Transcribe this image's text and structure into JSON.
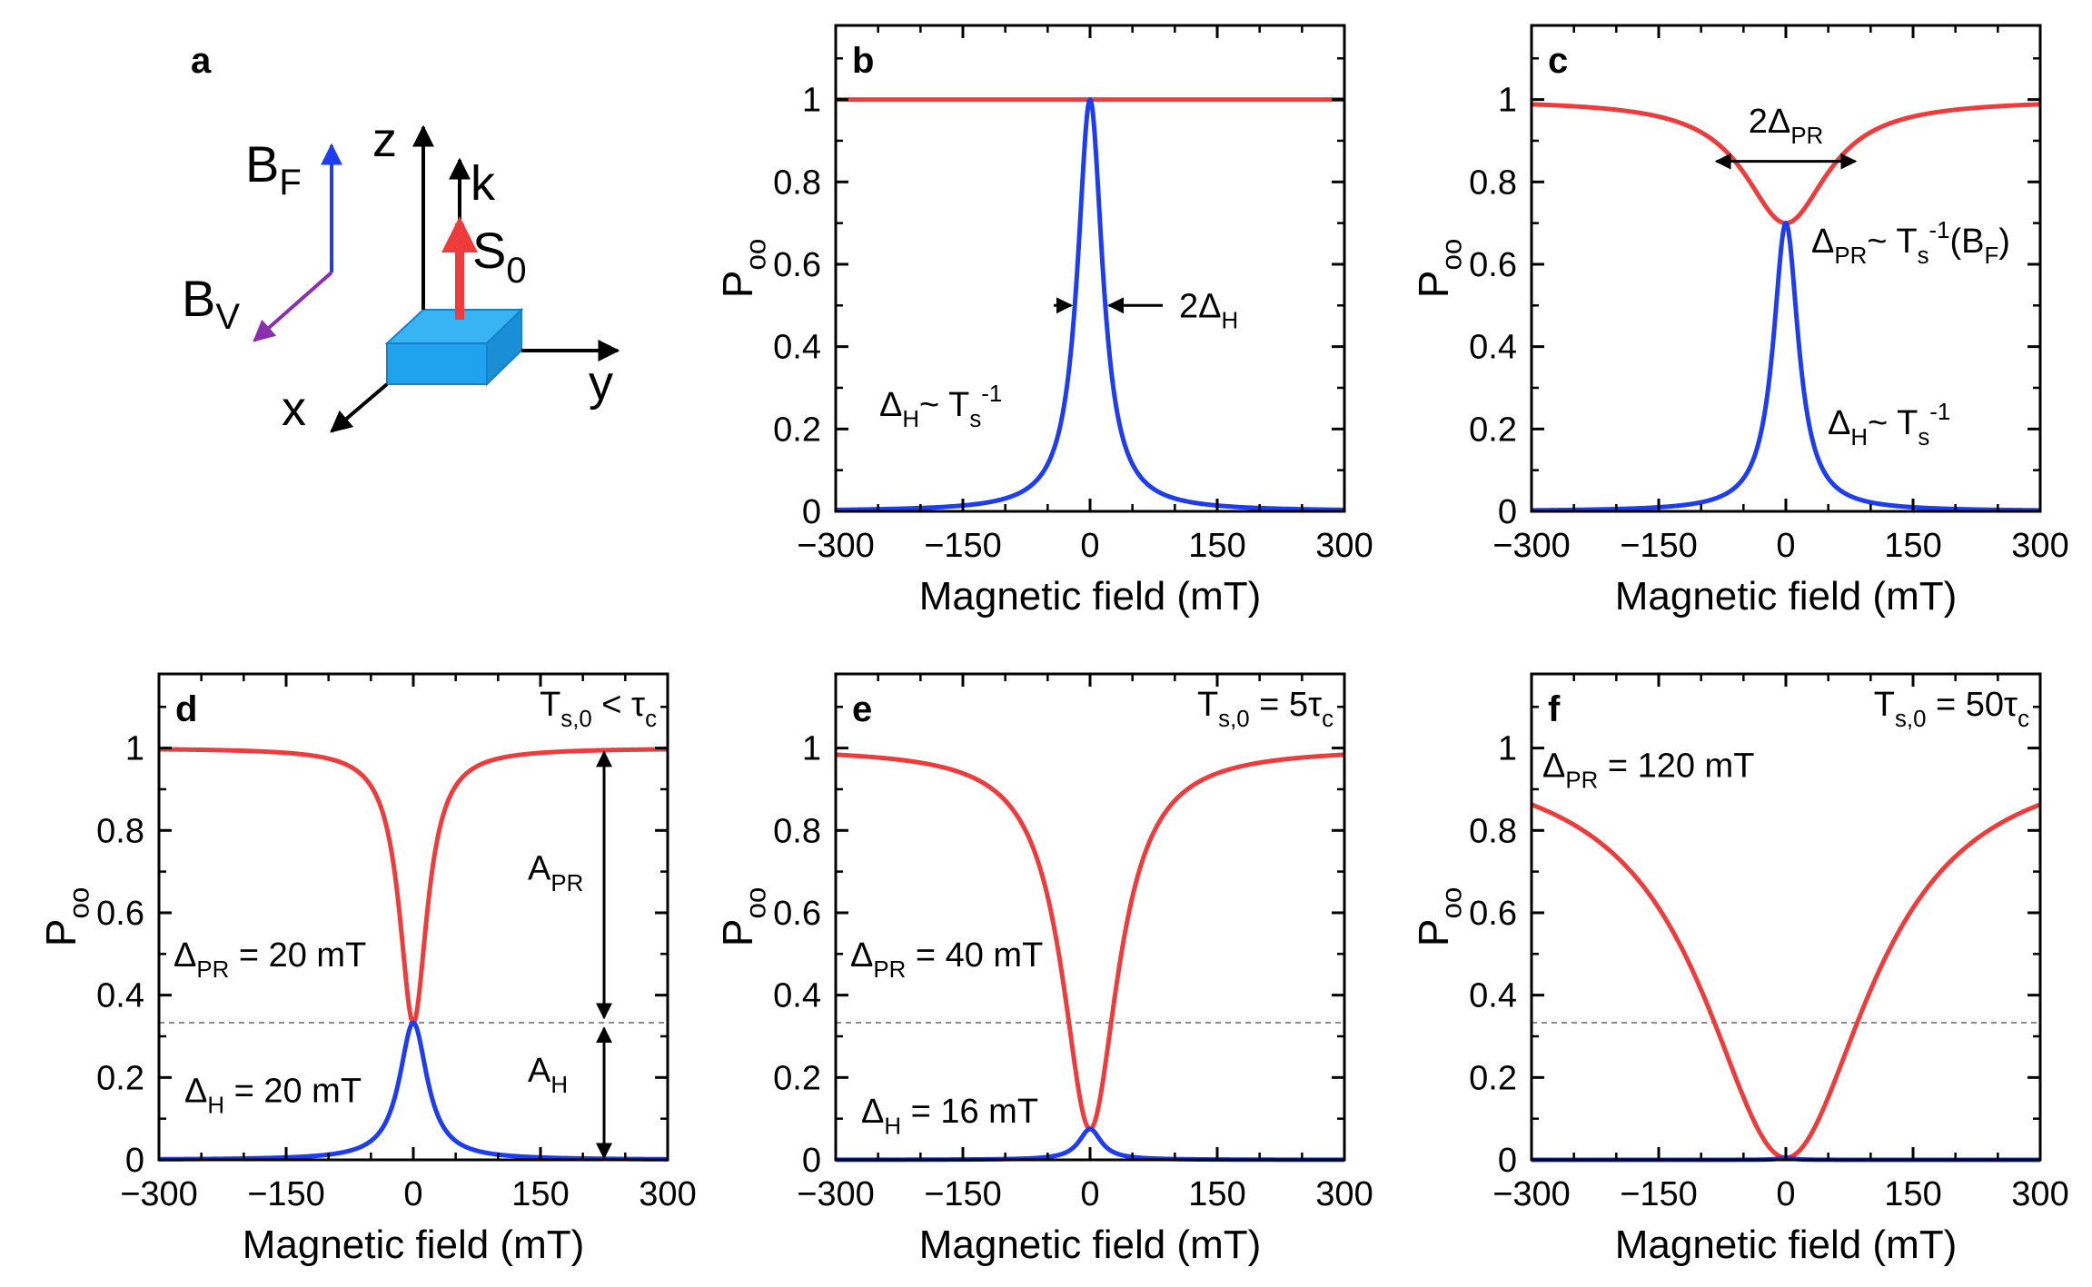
{
  "colors": {
    "red": "#ee3b3b",
    "blue": "#1f3df0",
    "purple": "#8a2fb0",
    "cube": "#1fa3ef",
    "cube_side": "#1780c9"
  },
  "panel_a": {
    "letter": "a",
    "labels": {
      "BF_main": "B",
      "BF_sub": "F",
      "BV_main": "B",
      "BV_sub": "V",
      "z": "z",
      "k": "k",
      "S_main": "S",
      "S_sub": "0",
      "x": "x",
      "y": "y"
    }
  },
  "chart_data": [
    {
      "id": "b",
      "letter": "b",
      "type": "line",
      "xlabel": "Magnetic field (mT)",
      "ylabel_main": "P",
      "ylabel_sub": "oo",
      "xlim": [
        -300,
        300
      ],
      "ylim": [
        0,
        1.18
      ],
      "xticks": [
        "−300",
        "−150",
        "0",
        "150",
        "300"
      ],
      "yticks": [
        "0",
        "0.2",
        "0.4",
        "0.6",
        "0.8",
        "1"
      ],
      "series": [
        {
          "color": "red",
          "model": "constant",
          "value": 1.0
        },
        {
          "color": "blue",
          "model": "lorentzian",
          "amplitude": 1.0,
          "width_mT": 18
        }
      ],
      "annotations": {
        "width_main": "2Δ",
        "width_sub": "H",
        "rel_main1": "Δ",
        "rel_sub1": "H",
        "rel_mid": "~  T",
        "rel_sub2": "s",
        "rel_sup": "-1"
      }
    },
    {
      "id": "c",
      "letter": "c",
      "type": "line",
      "xlabel": "Magnetic field (mT)",
      "ylabel_main": "P",
      "ylabel_sub": "oo",
      "xlim": [
        -300,
        300
      ],
      "ylim": [
        0,
        1.18
      ],
      "xticks": [
        "−300",
        "−150",
        "0",
        "150",
        "300"
      ],
      "yticks": [
        "0",
        "0.2",
        "0.4",
        "0.6",
        "0.8",
        "1"
      ],
      "series": [
        {
          "color": "red",
          "model": "dip",
          "depth": 0.3,
          "width_mT": 60
        },
        {
          "color": "blue",
          "model": "lorentzian",
          "amplitude": 0.7,
          "width_mT": 18
        }
      ],
      "annotations": {
        "width_main": "2Δ",
        "width_sub": "PR",
        "pr_main": "Δ",
        "pr_sub": "PR",
        "pr_mid": "~  T",
        "pr_sub2": "s",
        "pr_sup": "-1",
        "pr_tail": "(B",
        "pr_tail_sub": "F",
        "pr_close": ")",
        "h_main": "Δ",
        "h_sub": "H",
        "h_mid": "~  T",
        "h_sub2": "s",
        "h_sup": "-1"
      }
    },
    {
      "id": "d",
      "letter": "d",
      "type": "line",
      "xlabel": "Magnetic field (mT)",
      "ylabel_main": "P",
      "ylabel_sub": "oo",
      "xlim": [
        -300,
        300
      ],
      "ylim": [
        0,
        1.18
      ],
      "xticks": [
        "−300",
        "−150",
        "0",
        "150",
        "300"
      ],
      "yticks": [
        "0",
        "0.2",
        "0.4",
        "0.6",
        "0.8",
        "1"
      ],
      "dashed_y": 0.333,
      "series": [
        {
          "color": "red",
          "model": "dip",
          "depth": 0.667,
          "width_mT": 20
        },
        {
          "color": "blue",
          "model": "lorentzian",
          "amplitude": 0.333,
          "width_mT": 20
        }
      ],
      "annotations": {
        "corner_main": "T",
        "corner_sub": "s,0",
        "corner_rel": " < τ",
        "corner_rel_sub": "c",
        "pr_main": "Δ",
        "pr_sub": "PR",
        "pr_value": " = 20 mT",
        "h_main": "Δ",
        "h_sub": "H",
        "h_value": " = 20 mT",
        "apr_main": "A",
        "apr_sub": "PR",
        "ah_main": "A",
        "ah_sub": "H"
      }
    },
    {
      "id": "e",
      "letter": "e",
      "type": "line",
      "xlabel": "Magnetic field (mT)",
      "ylabel_main": "P",
      "ylabel_sub": "oo",
      "xlim": [
        -300,
        300
      ],
      "ylim": [
        0,
        1.18
      ],
      "xticks": [
        "−300",
        "−150",
        "0",
        "150",
        "300"
      ],
      "yticks": [
        "0",
        "0.2",
        "0.4",
        "0.6",
        "0.8",
        "1"
      ],
      "dashed_y": 0.333,
      "series": [
        {
          "color": "red",
          "model": "dip",
          "depth": 0.925,
          "width_mT": 40
        },
        {
          "color": "blue",
          "model": "lorentzian",
          "amplitude": 0.075,
          "width_mT": 16
        }
      ],
      "annotations": {
        "corner_main": "T",
        "corner_sub": "s,0",
        "corner_rel": " = 5τ",
        "corner_rel_sub": "c",
        "pr_main": "Δ",
        "pr_sub": "PR",
        "pr_value": " = 40 mT",
        "h_main": "Δ",
        "h_sub": "H",
        "h_value": " = 16 mT"
      }
    },
    {
      "id": "f",
      "letter": "f",
      "type": "line",
      "xlabel": "Magnetic field (mT)",
      "ylabel_main": "P",
      "ylabel_sub": "oo",
      "xlim": [
        -300,
        300
      ],
      "ylim": [
        0,
        1.18
      ],
      "xticks": [
        "−300",
        "−150",
        "0",
        "150",
        "300"
      ],
      "yticks": [
        "0",
        "0.2",
        "0.4",
        "0.6",
        "0.8",
        "1"
      ],
      "dashed_y": 0.333,
      "series": [
        {
          "color": "red",
          "model": "dip",
          "depth": 0.995,
          "width_mT": 120
        },
        {
          "color": "blue",
          "model": "lorentzian",
          "amplitude": 0.005,
          "width_mT": 10
        }
      ],
      "annotations": {
        "corner_main": "T",
        "corner_sub": "s,0",
        "corner_rel": " = 50τ",
        "corner_rel_sub": "c",
        "pr_main": "Δ",
        "pr_sub": "PR",
        "pr_value": " = 120 mT"
      }
    }
  ]
}
